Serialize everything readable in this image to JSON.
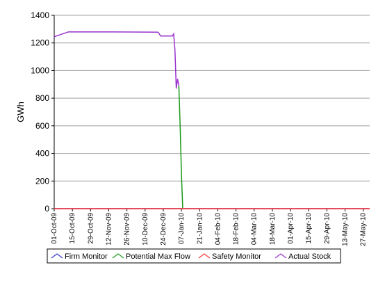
{
  "chart_data": {
    "type": "line",
    "y_label": "GWh",
    "ylim": [
      0,
      1400
    ],
    "yticks": [
      0,
      200,
      400,
      600,
      800,
      1000,
      1200,
      1400
    ],
    "xlim": [
      "2009-10-01",
      "2010-06-01"
    ],
    "xticks": [
      {
        "value": "2009-10-01",
        "label": "01-Oct-09"
      },
      {
        "value": "2009-10-15",
        "label": "15-Oct-09"
      },
      {
        "value": "2009-10-29",
        "label": "29-Oct-09"
      },
      {
        "value": "2009-11-12",
        "label": "12-Nov-09"
      },
      {
        "value": "2009-11-26",
        "label": "26-Nov-09"
      },
      {
        "value": "2009-12-10",
        "label": "10-Dec-09"
      },
      {
        "value": "2009-12-24",
        "label": "24-Dec-09"
      },
      {
        "value": "2010-01-07",
        "label": "07-Jan-10"
      },
      {
        "value": "2010-01-21",
        "label": "21-Jan-10"
      },
      {
        "value": "2010-02-04",
        "label": "04-Feb-10"
      },
      {
        "value": "2010-02-18",
        "label": "18-Feb-10"
      },
      {
        "value": "2010-03-04",
        "label": "04-Mar-10"
      },
      {
        "value": "2010-03-18",
        "label": "18-Mar-10"
      },
      {
        "value": "2010-04-01",
        "label": "01-Apr-10"
      },
      {
        "value": "2010-04-15",
        "label": "15-Apr-10"
      },
      {
        "value": "2010-04-29",
        "label": "29-Apr-10"
      },
      {
        "value": "2010-05-13",
        "label": "13-May-10"
      },
      {
        "value": "2010-05-27",
        "label": "27-May-10"
      }
    ],
    "grid": true,
    "series": [
      {
        "name": "Firm Monitor",
        "color": "#3333cc",
        "x": [
          "2009-10-01",
          "2010-06-01"
        ],
        "values": [
          0,
          0
        ]
      },
      {
        "name": "Potential Max Flow",
        "color": "#1a9a1a",
        "x": [
          "2010-01-05",
          "2010-01-06",
          "2010-01-07",
          "2010-01-08"
        ],
        "values": [
          890,
          600,
          250,
          0
        ]
      },
      {
        "name": "Safety Monitor",
        "color": "#ff3333",
        "x": [
          "2009-10-01",
          "2010-06-01"
        ],
        "values": [
          0,
          0
        ]
      },
      {
        "name": "Actual Stock",
        "color": "#9933cc",
        "x": [
          "2009-10-01",
          "2009-10-12",
          "2009-11-15",
          "2009-12-20",
          "2009-12-22",
          "2009-12-31",
          "2010-01-01",
          "2010-01-02",
          "2010-01-03",
          "2010-01-04",
          "2010-01-05"
        ],
        "values": [
          1245,
          1280,
          1280,
          1278,
          1250,
          1250,
          1265,
          1150,
          870,
          940,
          890
        ]
      }
    ]
  }
}
